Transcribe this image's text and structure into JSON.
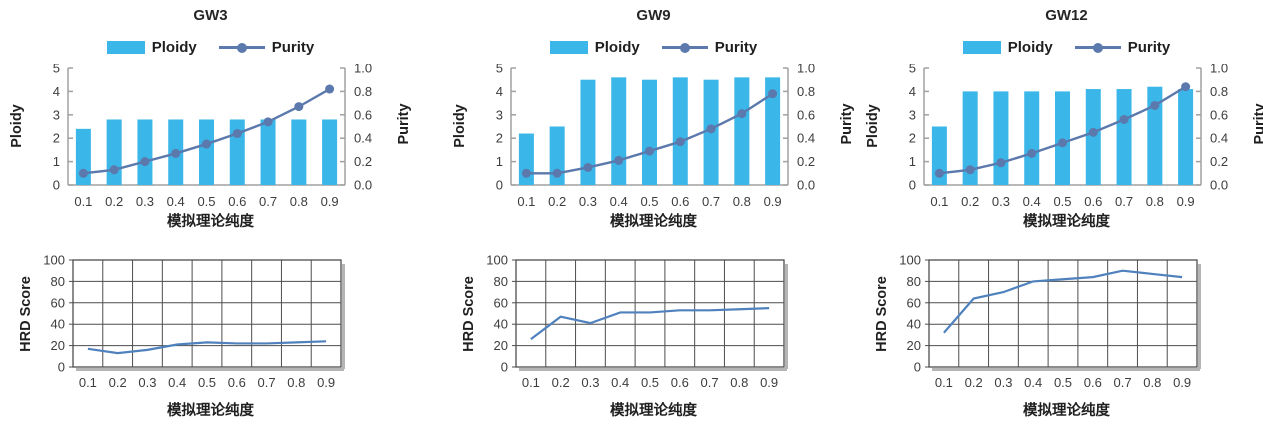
{
  "colors": {
    "ploidy_bar": "#3ab6e8",
    "purity_line": "#5b79ad",
    "hrd_line": "#4f81bd",
    "axis_spine": "#a0a0a0",
    "tick_text": "#3d3d3d",
    "grid_line": "#4d4d4d",
    "grid_shadow": "#b5b5b5",
    "title_text": "#262626"
  },
  "chart_data": [
    {
      "title": "GW3",
      "combo": {
        "type": "bar+line",
        "categories": [
          "0.1",
          "0.2",
          "0.3",
          "0.4",
          "0.5",
          "0.6",
          "0.7",
          "0.8",
          "0.9"
        ],
        "series": [
          {
            "name": "Ploidy",
            "type": "bar",
            "axis": "left",
            "values": [
              2.4,
              2.8,
              2.8,
              2.8,
              2.8,
              2.8,
              2.8,
              2.8,
              2.8
            ]
          },
          {
            "name": "Purity",
            "type": "line",
            "axis": "right",
            "values": [
              0.1,
              0.13,
              0.2,
              0.27,
              0.35,
              0.44,
              0.54,
              0.67,
              0.82
            ]
          }
        ],
        "left_axis": {
          "label": "Ploidy",
          "lim": [
            0,
            5
          ],
          "ticks": [
            0,
            1,
            2,
            3,
            4,
            5
          ]
        },
        "right_axis": {
          "label": "Purity",
          "lim": [
            0,
            1
          ],
          "ticks": [
            "0.0",
            "0.2",
            "0.4",
            "0.6",
            "0.8",
            "1.0"
          ]
        },
        "xlabel": "模拟理论纯度",
        "legend_position": "top"
      },
      "hrd": {
        "type": "line",
        "categories": [
          "0.1",
          "0.2",
          "0.3",
          "0.4",
          "0.5",
          "0.6",
          "0.7",
          "0.8",
          "0.9"
        ],
        "series": [
          {
            "name": "HRD Score",
            "values": [
              17,
              13,
              16,
              21,
              23,
              22,
              22,
              23,
              24
            ]
          }
        ],
        "ylabel": "HRD Score",
        "ylim": [
          0,
          100
        ],
        "yticks": [
          0,
          20,
          40,
          60,
          80,
          100
        ],
        "xlabel": "模拟理论纯度",
        "grid": true
      }
    },
    {
      "title": "GW9",
      "combo": {
        "type": "bar+line",
        "categories": [
          "0.1",
          "0.2",
          "0.3",
          "0.4",
          "0.5",
          "0.6",
          "0.7",
          "0.8",
          "0.9"
        ],
        "series": [
          {
            "name": "Ploidy",
            "type": "bar",
            "axis": "left",
            "values": [
              2.2,
              2.5,
              4.5,
              4.6,
              4.5,
              4.6,
              4.5,
              4.6,
              4.6
            ]
          },
          {
            "name": "Purity",
            "type": "line",
            "axis": "right",
            "values": [
              0.1,
              0.1,
              0.15,
              0.21,
              0.29,
              0.37,
              0.48,
              0.61,
              0.78
            ]
          }
        ],
        "left_axis": {
          "label": "Ploidy",
          "lim": [
            0,
            5
          ],
          "ticks": [
            0,
            1,
            2,
            3,
            4,
            5
          ]
        },
        "right_axis": {
          "label": "Purity",
          "lim": [
            0,
            1
          ],
          "ticks": [
            "0.0",
            "0.2",
            "0.4",
            "0.6",
            "0.8",
            "1.0"
          ]
        },
        "xlabel": "模拟理论纯度",
        "legend_position": "top"
      },
      "hrd": {
        "type": "line",
        "categories": [
          "0.1",
          "0.2",
          "0.3",
          "0.4",
          "0.5",
          "0.6",
          "0.7",
          "0.8",
          "0.9"
        ],
        "series": [
          {
            "name": "HRD Score",
            "values": [
              26,
              47,
              41,
              51,
              51,
              53,
              53,
              54,
              55
            ]
          }
        ],
        "ylabel": "HRD Score",
        "ylim": [
          0,
          100
        ],
        "yticks": [
          0,
          20,
          40,
          60,
          80,
          100
        ],
        "xlabel": "模拟理论纯度",
        "grid": true
      }
    },
    {
      "title": "GW12",
      "combo": {
        "type": "bar+line",
        "categories": [
          "0.1",
          "0.2",
          "0.3",
          "0.4",
          "0.5",
          "0.6",
          "0.7",
          "0.8",
          "0.9"
        ],
        "series": [
          {
            "name": "Ploidy",
            "type": "bar",
            "axis": "left",
            "values": [
              2.5,
              4.0,
              4.0,
              4.0,
              4.0,
              4.1,
              4.1,
              4.2,
              4.1
            ]
          },
          {
            "name": "Purity",
            "type": "line",
            "axis": "right",
            "values": [
              0.1,
              0.13,
              0.19,
              0.27,
              0.36,
              0.45,
              0.56,
              0.68,
              0.84
            ]
          }
        ],
        "left_axis": {
          "label": "Ploidy",
          "lim": [
            0,
            5
          ],
          "ticks": [
            0,
            1,
            2,
            3,
            4,
            5
          ]
        },
        "right_axis": {
          "label": "Purity",
          "lim": [
            0,
            1
          ],
          "ticks": [
            "0.0",
            "0.2",
            "0.4",
            "0.6",
            "0.8",
            "1.0"
          ]
        },
        "xlabel": "模拟理论纯度",
        "legend_position": "top"
      },
      "hrd": {
        "type": "line",
        "categories": [
          "0.1",
          "0.2",
          "0.3",
          "0.4",
          "0.5",
          "0.6",
          "0.7",
          "0.8",
          "0.9"
        ],
        "series": [
          {
            "name": "HRD Score",
            "values": [
              32,
              64,
              70,
              80,
              82,
              84,
              90,
              87,
              84
            ]
          }
        ],
        "ylabel": "HRD Score",
        "ylim": [
          0,
          100
        ],
        "yticks": [
          0,
          20,
          40,
          60,
          80,
          100
        ],
        "xlabel": "模拟理论纯度",
        "grid": true
      }
    }
  ]
}
